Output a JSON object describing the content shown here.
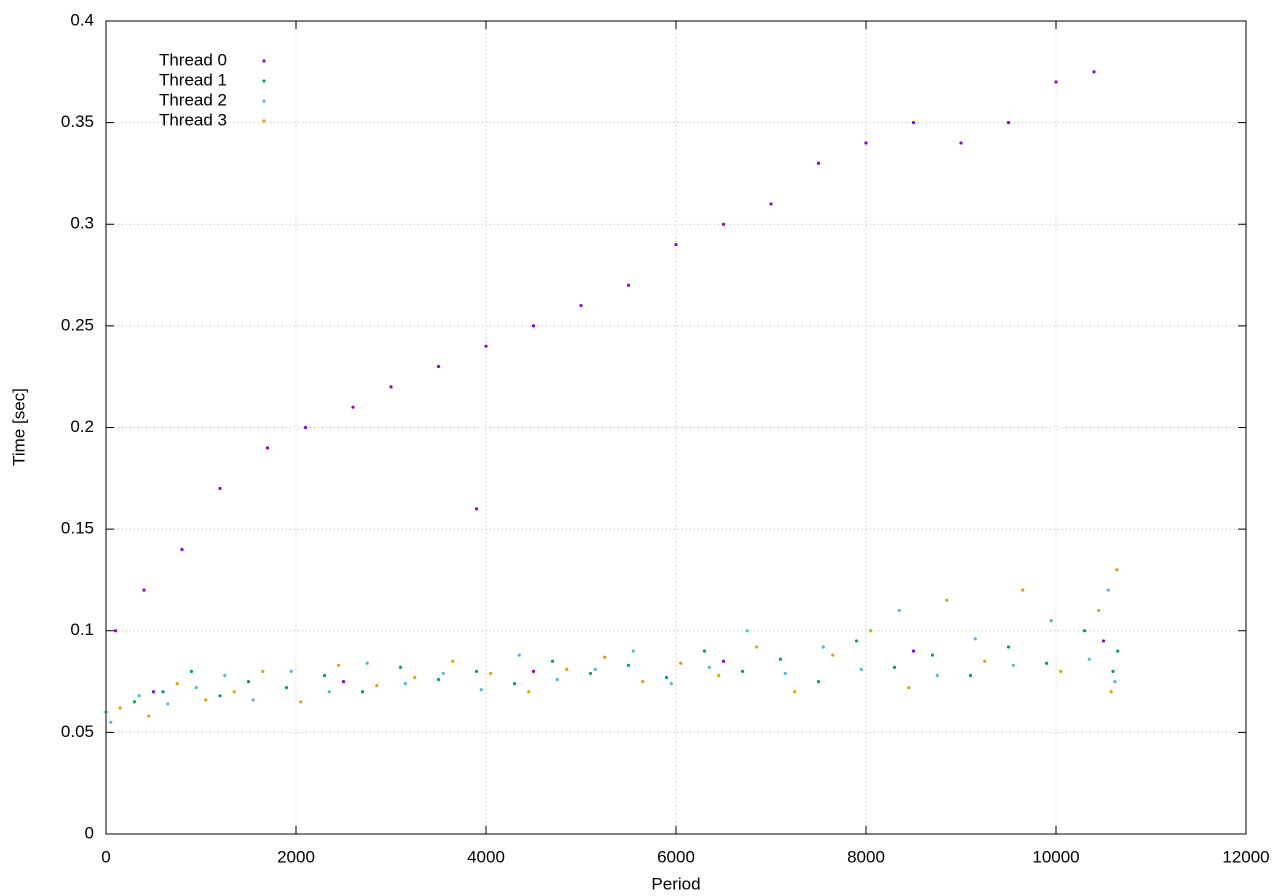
{
  "chart_data": {
    "type": "scatter",
    "x_label": "Period",
    "y_label": "Time [sec]",
    "xlim": [
      0,
      12000
    ],
    "xticks": [
      0,
      2000,
      4000,
      6000,
      8000,
      10000,
      12000
    ],
    "ylim": [
      0,
      0.4
    ],
    "yticks": [
      0,
      0.05,
      0.1,
      0.15,
      0.2,
      0.25,
      0.3,
      0.35,
      0.4
    ],
    "grid": true,
    "legend": "top-left",
    "series": [
      {
        "name": "Thread 0",
        "color": "#9400d3",
        "x": [
          100,
          400,
          800,
          1200,
          1700,
          2100,
          2600,
          3000,
          3500,
          4000,
          4500,
          5000,
          5500,
          6000,
          6500,
          7000,
          7500,
          8000,
          8500,
          9000,
          9500,
          10000,
          10400,
          500,
          2500,
          4500,
          6500,
          8500,
          10500,
          3900
        ],
        "values": [
          0.1,
          0.12,
          0.14,
          0.17,
          0.19,
          0.2,
          0.21,
          0.22,
          0.23,
          0.24,
          0.25,
          0.26,
          0.27,
          0.29,
          0.3,
          0.31,
          0.33,
          0.34,
          0.35,
          0.34,
          0.35,
          0.37,
          0.375,
          0.07,
          0.075,
          0.08,
          0.085,
          0.09,
          0.095,
          0.16
        ]
      },
      {
        "name": "Thread 1",
        "color": "#009e73",
        "x": [
          0,
          300,
          600,
          900,
          1200,
          1500,
          1900,
          2300,
          2700,
          3100,
          3500,
          3900,
          4300,
          4700,
          5100,
          5500,
          5900,
          6300,
          6700,
          7100,
          7500,
          7900,
          8300,
          8700,
          9100,
          9500,
          9900,
          10300,
          10600,
          10650
        ],
        "values": [
          0.06,
          0.065,
          0.07,
          0.08,
          0.068,
          0.075,
          0.072,
          0.078,
          0.07,
          0.082,
          0.076,
          0.08,
          0.074,
          0.085,
          0.079,
          0.083,
          0.077,
          0.09,
          0.08,
          0.086,
          0.075,
          0.095,
          0.082,
          0.088,
          0.078,
          0.092,
          0.084,
          0.1,
          0.08,
          0.09
        ]
      },
      {
        "name": "Thread 2",
        "color": "#56b4e9",
        "x": [
          50,
          350,
          650,
          950,
          1250,
          1550,
          1950,
          2350,
          2750,
          3150,
          3550,
          3950,
          4350,
          4750,
          5150,
          5550,
          5950,
          6350,
          6750,
          7150,
          7550,
          7950,
          8350,
          8750,
          9150,
          9550,
          9950,
          10350,
          10550,
          10620
        ],
        "values": [
          0.055,
          0.068,
          0.064,
          0.072,
          0.078,
          0.066,
          0.08,
          0.07,
          0.084,
          0.074,
          0.079,
          0.071,
          0.088,
          0.076,
          0.081,
          0.09,
          0.074,
          0.082,
          0.1,
          0.079,
          0.092,
          0.081,
          0.11,
          0.078,
          0.096,
          0.083,
          0.105,
          0.086,
          0.12,
          0.075
        ]
      },
      {
        "name": "Thread 3",
        "color": "#e69f00",
        "x": [
          150,
          450,
          750,
          1050,
          1350,
          1650,
          2050,
          2450,
          2850,
          3250,
          3650,
          4050,
          4450,
          4850,
          5250,
          5650,
          6050,
          6450,
          6850,
          7250,
          7650,
          8050,
          8450,
          8850,
          9250,
          9650,
          10050,
          10450,
          10580,
          10640
        ],
        "values": [
          0.062,
          0.058,
          0.074,
          0.066,
          0.07,
          0.08,
          0.065,
          0.083,
          0.073,
          0.077,
          0.085,
          0.079,
          0.07,
          0.081,
          0.087,
          0.075,
          0.084,
          0.078,
          0.092,
          0.07,
          0.088,
          0.1,
          0.072,
          0.115,
          0.085,
          0.12,
          0.08,
          0.11,
          0.07,
          0.13
        ]
      }
    ]
  }
}
